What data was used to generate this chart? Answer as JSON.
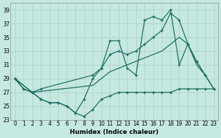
{
  "xlabel": "Humidex (Indice chaleur)",
  "background_color": "#c5e8e0",
  "grid_color": "#aacfc8",
  "line_color": "#1a6b60",
  "xlim": [
    -0.5,
    23.5
  ],
  "ylim": [
    23,
    40
  ],
  "xtick_labels": [
    "0",
    "1",
    "2",
    "3",
    "4",
    "5",
    "6",
    "7",
    "8",
    "9",
    "10",
    "11",
    "12",
    "13",
    "14",
    "15",
    "16",
    "17",
    "18",
    "19",
    "20",
    "21",
    "22",
    "23"
  ],
  "xticks": [
    0,
    1,
    2,
    3,
    4,
    5,
    6,
    7,
    8,
    9,
    10,
    11,
    12,
    13,
    14,
    15,
    16,
    17,
    18,
    19,
    20,
    21,
    22,
    23
  ],
  "yticks": [
    23,
    25,
    27,
    29,
    31,
    33,
    35,
    37,
    39
  ],
  "s1_x": [
    0,
    1,
    2,
    3,
    4,
    5,
    6,
    7,
    8,
    9,
    10,
    11,
    12,
    13,
    14,
    15,
    16,
    17,
    18,
    19,
    20,
    21,
    22,
    23
  ],
  "s1_y": [
    29,
    27.5,
    27,
    26,
    25.5,
    25.5,
    25,
    24,
    23.5,
    24.5,
    26,
    26.5,
    27,
    27,
    27,
    27,
    27,
    27,
    27,
    27.5,
    27.5,
    27.5,
    27.5,
    27.5
  ],
  "s2_x": [
    0,
    1,
    2,
    3,
    4,
    5,
    6,
    7,
    8,
    9,
    10,
    11,
    12,
    13,
    14,
    15,
    16,
    17,
    18,
    19,
    20,
    21,
    22
  ],
  "s2_y": [
    29,
    27.5,
    27,
    26,
    25.5,
    25.5,
    25,
    24,
    26,
    29,
    30.5,
    34.5,
    34.5,
    30.5,
    29.5,
    37.5,
    38,
    37.5,
    39,
    31,
    34,
    31.5,
    29.5
  ],
  "s3_x": [
    0,
    2,
    3,
    9,
    10,
    11,
    12,
    13,
    14,
    15,
    16,
    17,
    18,
    19,
    20,
    21,
    22,
    23
  ],
  "s3_y": [
    29,
    27,
    27.5,
    29.5,
    30.5,
    32.5,
    33,
    32.5,
    33,
    34,
    35,
    36,
    38.5,
    37.5,
    34,
    31.5,
    29.5,
    27.5
  ],
  "s4_x": [
    0,
    2,
    9,
    10,
    11,
    12,
    13,
    14,
    15,
    16,
    17,
    18,
    19,
    20,
    21,
    22,
    23
  ],
  "s4_y": [
    29,
    27,
    28,
    29,
    30,
    30.5,
    31,
    31.5,
    32,
    32.5,
    33,
    34,
    35,
    34,
    31,
    29.5,
    27.5
  ]
}
